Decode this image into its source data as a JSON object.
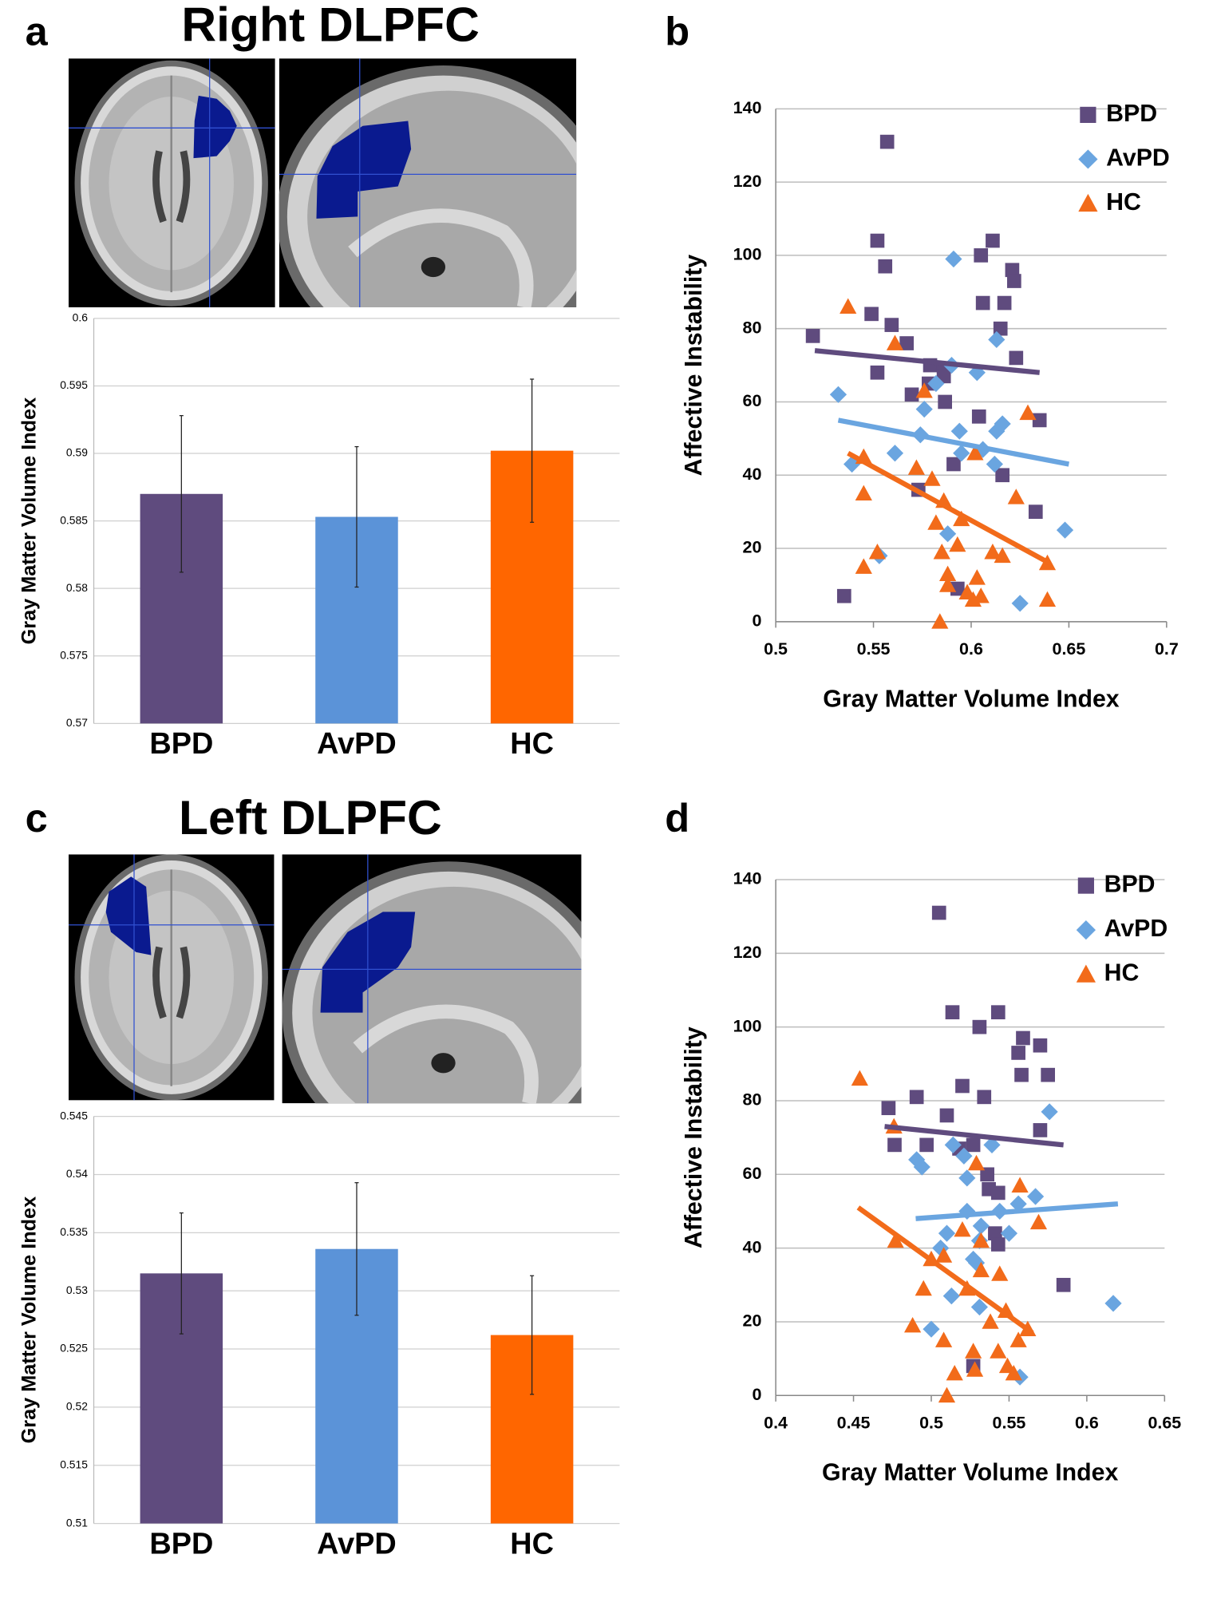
{
  "chart_data": [
    {
      "type": "bar",
      "panel": "a",
      "title": "Right DLPFC",
      "ylabel": "Gray Matter Volume Index",
      "categories": [
        "BPD",
        "AvPD",
        "HC"
      ],
      "values": [
        0.587,
        0.5853,
        0.5902
      ],
      "errors": [
        0.0058,
        0.0052,
        0.0053
      ],
      "colors": [
        "#5f4b7e",
        "#5b93d8",
        "#ff6600"
      ],
      "ylim": [
        0.57,
        0.6
      ],
      "yticks": [
        0.57,
        0.575,
        0.58,
        0.585,
        0.59,
        0.595,
        0.6
      ],
      "grid": true
    },
    {
      "type": "scatter",
      "panel": "b",
      "xlabel": "Gray Matter Volume Index",
      "ylabel": "Affective Instability",
      "xlim": [
        0.5,
        0.7
      ],
      "xticks": [
        0.5,
        0.55,
        0.6,
        0.65,
        0.7
      ],
      "ylim": [
        0,
        140
      ],
      "yticks": [
        0,
        20,
        40,
        60,
        80,
        100,
        120,
        140
      ],
      "grid": true,
      "legend": "upper right",
      "series": [
        {
          "name": "BPD",
          "color": "#5f4b7e",
          "marker": "square",
          "x": [
            0.519,
            0.557,
            0.552,
            0.556,
            0.549,
            0.5593,
            0.567,
            0.552,
            0.579,
            0.586,
            0.586,
            0.5783,
            0.5696,
            0.5866,
            0.591,
            0.573,
            0.593,
            0.535,
            0.605,
            0.611,
            0.606,
            0.617,
            0.621,
            0.622,
            0.615,
            0.623,
            0.604,
            0.616,
            0.635,
            0.633
          ],
          "y": [
            78,
            131,
            104,
            97,
            84,
            81,
            76,
            68,
            70,
            69,
            67,
            65,
            62,
            60,
            43,
            36,
            9,
            7,
            100,
            104,
            87,
            87,
            96,
            93,
            80,
            72,
            56,
            40,
            55,
            30
          ],
          "trendline": {
            "x": [
              0.52,
              0.635
            ],
            "y": [
              74,
              68
            ]
          }
        },
        {
          "name": "AvPD",
          "color": "#6aa5e0",
          "marker": "diamond",
          "x": [
            0.532,
            0.539,
            0.553,
            0.561,
            0.574,
            0.576,
            0.582,
            0.59,
            0.591,
            0.588,
            0.594,
            0.603,
            0.595,
            0.606,
            0.613,
            0.616,
            0.613,
            0.612,
            0.625,
            0.648
          ],
          "y": [
            62,
            43,
            18,
            46,
            51,
            58,
            65,
            70,
            99,
            24,
            52,
            68,
            46,
            47,
            52,
            54,
            77,
            43,
            5,
            25
          ],
          "trendline": {
            "x": [
              0.532,
              0.65
            ],
            "y": [
              55,
              43
            ]
          }
        },
        {
          "name": "HC",
          "color": "#f26b1a",
          "marker": "triangle",
          "x": [
            0.537,
            0.561,
            0.545,
            0.545,
            0.552,
            0.545,
            0.576,
            0.572,
            0.58,
            0.586,
            0.582,
            0.595,
            0.585,
            0.588,
            0.588,
            0.584,
            0.598,
            0.601,
            0.605,
            0.603,
            0.611,
            0.616,
            0.623,
            0.629,
            0.639,
            0.639,
            0.602,
            0.593
          ],
          "y": [
            86,
            76,
            45,
            35,
            19,
            15,
            63,
            42,
            39,
            33,
            27,
            28,
            19,
            13,
            10,
            0,
            8,
            6,
            7,
            12,
            19,
            18,
            34,
            57,
            16,
            6,
            46,
            21
          ],
          "trendline": {
            "x": [
              0.537,
              0.64
            ],
            "y": [
              46,
              16
            ]
          }
        }
      ]
    },
    {
      "type": "bar",
      "panel": "c",
      "title": "Left DLPFC",
      "ylabel": "Gray Matter Volume Index",
      "categories": [
        "BPD",
        "AvPD",
        "HC"
      ],
      "values": [
        0.5315,
        0.5336,
        0.5262
      ],
      "errors": [
        0.0052,
        0.0057,
        0.0051
      ],
      "colors": [
        "#5f4b7e",
        "#5b93d8",
        "#ff6600"
      ],
      "ylim": [
        0.51,
        0.545
      ],
      "yticks": [
        0.51,
        0.515,
        0.52,
        0.525,
        0.53,
        0.535,
        0.54,
        0.545
      ],
      "grid": true
    },
    {
      "type": "scatter",
      "panel": "d",
      "xlabel": "Gray Matter Volume Index",
      "ylabel": "Affective Instability",
      "xlim": [
        0.4,
        0.65
      ],
      "xticks": [
        0.4,
        0.45,
        0.5,
        0.55,
        0.6,
        0.65
      ],
      "ylim": [
        0,
        140
      ],
      "yticks": [
        0,
        20,
        40,
        60,
        80,
        100,
        120,
        140
      ],
      "grid": true,
      "legend": "upper right",
      "series": [
        {
          "name": "BPD",
          "color": "#5f4b7e",
          "marker": "square",
          "x": [
            0.4725,
            0.4764,
            0.4906,
            0.497,
            0.51,
            0.52,
            0.5136,
            0.505,
            0.531,
            0.543,
            0.534,
            0.518,
            0.527,
            0.536,
            0.537,
            0.543,
            0.541,
            0.543,
            0.556,
            0.559,
            0.558,
            0.57,
            0.575,
            0.57,
            0.585,
            0.527
          ],
          "y": [
            78,
            68,
            81,
            68,
            76,
            84,
            104,
            131,
            100,
            104,
            81,
            67,
            68,
            60,
            56,
            55,
            44,
            41,
            93,
            97,
            87,
            95,
            87,
            72,
            30,
            8
          ],
          "trendline": {
            "x": [
              0.47,
              0.585
            ],
            "y": [
              73,
              68
            ]
          }
        },
        {
          "name": "AvPD",
          "color": "#6aa5e0",
          "marker": "diamond",
          "x": [
            0.4906,
            0.494,
            0.5,
            0.506,
            0.51,
            0.514,
            0.521,
            0.523,
            0.523,
            0.529,
            0.532,
            0.531,
            0.513,
            0.531,
            0.539,
            0.544,
            0.55,
            0.556,
            0.567,
            0.576,
            0.617,
            0.557,
            0.527
          ],
          "y": [
            64,
            62,
            18,
            40,
            44,
            68,
            65,
            59,
            50,
            36,
            46,
            42,
            27,
            24,
            68,
            50,
            44,
            52,
            54,
            77,
            25,
            5,
            37
          ],
          "trendline": {
            "x": [
              0.49,
              0.62
            ],
            "y": [
              48,
              52
            ]
          }
        },
        {
          "name": "HC",
          "color": "#f26b1a",
          "marker": "triangle",
          "x": [
            0.454,
            0.476,
            0.477,
            0.488,
            0.495,
            0.5,
            0.508,
            0.508,
            0.51,
            0.515,
            0.52,
            0.523,
            0.527,
            0.528,
            0.529,
            0.532,
            0.532,
            0.538,
            0.543,
            0.544,
            0.548,
            0.549,
            0.553,
            0.557,
            0.556,
            0.562,
            0.569
          ],
          "y": [
            86,
            73,
            42,
            19,
            29,
            37,
            38,
            15,
            0,
            6,
            45,
            29,
            12,
            7,
            63,
            42,
            34,
            20,
            12,
            33,
            23,
            8,
            6,
            57,
            15,
            18,
            47
          ],
          "trendline": {
            "x": [
              0.453,
              0.565
            ],
            "y": [
              51,
              17
            ]
          }
        }
      ]
    }
  ]
}
